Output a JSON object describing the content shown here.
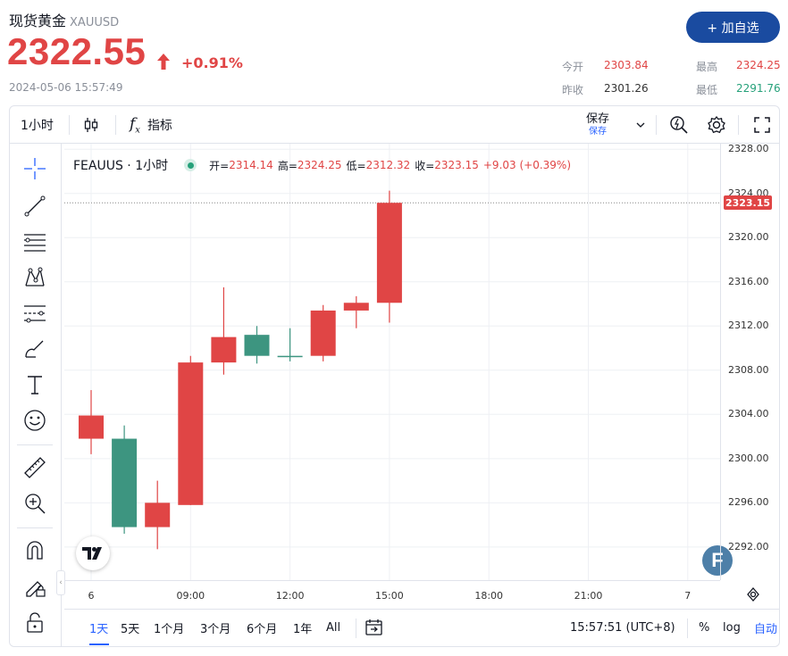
{
  "header": {
    "title": "现货黄金",
    "symbol": "XAUUSD",
    "price": "2322.55",
    "change": "+0.91%",
    "timestamp": "2024-05-06 15:57:49",
    "add_button": "+ 加自选",
    "stats": {
      "open_label": "今开",
      "open_value": "2303.84",
      "high_label": "最高",
      "high_value": "2324.25",
      "prev_close_label": "昨收",
      "prev_close_value": "2301.26",
      "low_label": "最低",
      "low_value": "2291.76"
    }
  },
  "toolbar": {
    "interval": "1小时",
    "indicators": "指标",
    "save": "保存",
    "save_sub": "保存"
  },
  "legend": {
    "name": "FEAUUS · 1小时",
    "open_k": "开=",
    "open_v": "2314.14",
    "high_k": "高=",
    "high_v": "2324.25",
    "low_k": "低=",
    "low_v": "2312.32",
    "close_k": "收=",
    "close_v": "2323.15",
    "change": "+9.03 (+0.39%)"
  },
  "price_axis": {
    "labels": [
      "2328.00",
      "2324.00",
      "2320.00",
      "2316.00",
      "2312.00",
      "2308.00",
      "2304.00",
      "2300.00",
      "2296.00",
      "2292.00"
    ],
    "last_price": "2323.15"
  },
  "time_axis": {
    "labels": [
      "6",
      "09:00",
      "12:00",
      "15:00",
      "18:00",
      "21:00",
      "7"
    ]
  },
  "bottom_bar": {
    "ranges": [
      "1天",
      "5天",
      "1个月",
      "3个月",
      "6个月",
      "1年",
      "All"
    ],
    "active_range": "1天",
    "clock": "15:57:51 (UTC+8)",
    "percent": "%",
    "log": "log",
    "auto": "自动"
  },
  "colors": {
    "up": "#e04545",
    "down": "#3d9580",
    "accent": "#2962ff",
    "brand": "#1a4ba0"
  },
  "chart_data": {
    "type": "candlestick",
    "ylim": [
      2289,
      2328.5
    ],
    "candles": [
      {
        "time": "06:00",
        "open": 2301.8,
        "high": 2306.2,
        "low": 2300.4,
        "close": 2303.9
      },
      {
        "time": "07:00",
        "open": 2301.8,
        "high": 2303.0,
        "low": 2293.2,
        "close": 2293.8
      },
      {
        "time": "08:00",
        "open": 2293.8,
        "high": 2298.0,
        "low": 2291.8,
        "close": 2296.0
      },
      {
        "time": "09:00",
        "open": 2295.8,
        "high": 2309.3,
        "low": 2295.8,
        "close": 2308.7
      },
      {
        "time": "10:00",
        "open": 2308.7,
        "high": 2315.5,
        "low": 2307.6,
        "close": 2311.0
      },
      {
        "time": "11:00",
        "open": 2311.2,
        "high": 2312.0,
        "low": 2308.6,
        "close": 2309.3
      },
      {
        "time": "12:00",
        "open": 2309.3,
        "high": 2311.8,
        "low": 2308.8,
        "close": 2309.2
      },
      {
        "time": "13:00",
        "open": 2309.3,
        "high": 2313.9,
        "low": 2308.8,
        "close": 2313.4
      },
      {
        "time": "14:00",
        "open": 2313.4,
        "high": 2314.7,
        "low": 2311.8,
        "close": 2314.1
      },
      {
        "time": "15:00",
        "open": 2314.1,
        "high": 2324.25,
        "low": 2312.3,
        "close": 2323.15
      }
    ]
  }
}
